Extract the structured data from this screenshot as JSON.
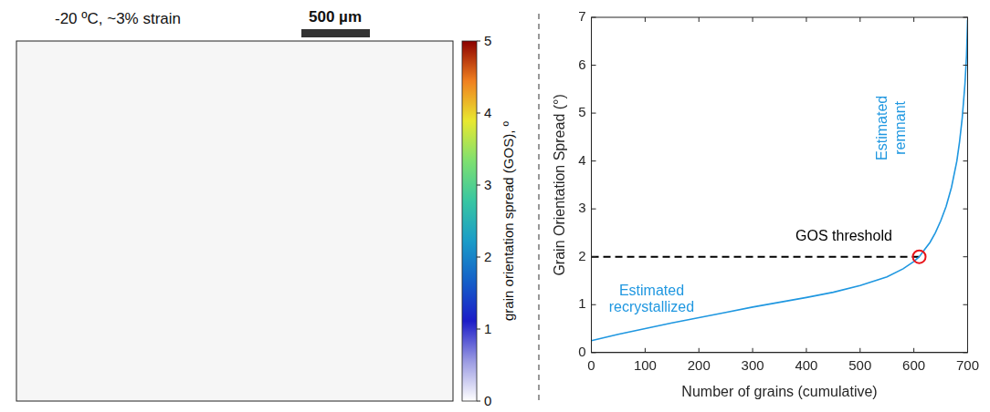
{
  "chart_data": [
    {
      "type": "map",
      "title": "-20 ºC, ~3% strain",
      "scale_bar": "500 µm",
      "colorbar": {
        "label": "grain orientation spread (GOS), º",
        "range": [
          0,
          5
        ],
        "ticks": [
          0,
          1,
          2,
          3,
          4,
          5
        ],
        "colors": [
          "#ffffff",
          "#9a9ae2",
          "#1c1cc8",
          "#1560c8",
          "#1a9cc8",
          "#38c6a2",
          "#7ee070",
          "#e8e830",
          "#f08020",
          "#8b0000"
        ]
      }
    },
    {
      "type": "line",
      "x_label": "Number of grains (cumulative)",
      "y_label": "Grain Orientation Spread (°)",
      "x": [
        0,
        50,
        100,
        150,
        200,
        250,
        300,
        350,
        400,
        450,
        500,
        550,
        580,
        600,
        610,
        620,
        630,
        640,
        650,
        660,
        670,
        680,
        685,
        690,
        695,
        698,
        700
      ],
      "values": [
        0.25,
        0.38,
        0.5,
        0.62,
        0.73,
        0.84,
        0.95,
        1.05,
        1.15,
        1.26,
        1.4,
        1.58,
        1.75,
        1.9,
        2.0,
        2.15,
        2.3,
        2.5,
        2.75,
        3.05,
        3.45,
        4.0,
        4.4,
        4.9,
        5.6,
        6.2,
        6.95
      ],
      "color": "#1f97e0",
      "xlim": [
        0,
        700
      ],
      "xticks": [
        0,
        100,
        200,
        300,
        400,
        500,
        600,
        700
      ],
      "ylim": [
        0,
        7
      ],
      "yticks": [
        0,
        1,
        2,
        3,
        4,
        5,
        6,
        7
      ],
      "grid": false,
      "threshold": {
        "label": "GOS threshold",
        "x": 610,
        "y": 2,
        "color": "#e8141a",
        "line_style": "dashed"
      },
      "annotations": [
        {
          "lines": [
            "Estimated",
            "recrystallized"
          ]
        },
        {
          "lines": [
            "Estimated",
            "remnant"
          ]
        }
      ]
    }
  ]
}
